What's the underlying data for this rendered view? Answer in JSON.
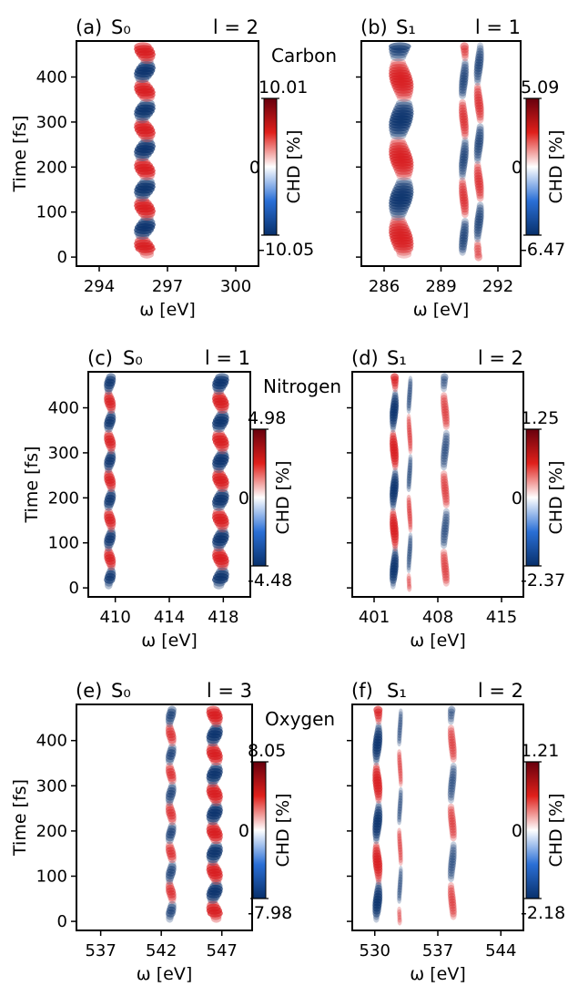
{
  "chart_data": [
    {
      "type": "heatmap",
      "panel": "(a)",
      "state": "S₀",
      "l_label": "l = 2",
      "element": "Carbon",
      "xlabel": "ω [eV]",
      "ylabel": "Time [fs]",
      "xticks": [
        "294",
        "297",
        "300"
      ],
      "yticks": [
        "0",
        "100",
        "200",
        "300",
        "400"
      ],
      "xlim": [
        293.0,
        301.0
      ],
      "ylim": [
        -20,
        480
      ],
      "colorbar": {
        "label": "CHD [%]",
        "max": "10.01",
        "mid": "0",
        "min": "-10.05"
      },
      "features": [
        {
          "x": 296.0,
          "width": 0.9,
          "amp": 1.0,
          "period": 87,
          "phase": 0.0
        }
      ]
    },
    {
      "type": "heatmap",
      "panel": "(b)",
      "state": "S₁",
      "l_label": "l = 1",
      "element": "",
      "xlabel": "ω [eV]",
      "ylabel": "",
      "xticks": [
        "286",
        "289",
        "292"
      ],
      "yticks": [
        "",
        "",
        "",
        "",
        ""
      ],
      "xlim": [
        284.8,
        293.2
      ],
      "ylim": [
        -20,
        480
      ],
      "colorbar": {
        "label": "CHD [%]",
        "max": "5.09",
        "mid": "0",
        "min": "-6.47"
      },
      "features": [
        {
          "x": 286.9,
          "width": 1.3,
          "amp": 0.9,
          "period": 175,
          "phase": 0.0
        },
        {
          "x": 290.2,
          "width": 0.6,
          "amp": 0.55,
          "period": 175,
          "phase": 0.5
        },
        {
          "x": 291.0,
          "width": 0.6,
          "amp": 0.55,
          "period": 175,
          "phase": 0.3
        }
      ]
    },
    {
      "type": "heatmap",
      "panel": "(c)",
      "state": "S₀",
      "l_label": "l = 1",
      "element": "Nitrogen",
      "xlabel": "ω [eV]",
      "ylabel": "Time [fs]",
      "xticks": [
        "410",
        "414",
        "418"
      ],
      "yticks": [
        "0",
        "100",
        "200",
        "300",
        "400"
      ],
      "xlim": [
        408.0,
        420.0
      ],
      "ylim": [
        -20,
        480
      ],
      "colorbar": {
        "label": "CHD [%]",
        "max": "4.98",
        "mid": "0",
        "min": "-4.48"
      },
      "features": [
        {
          "x": 409.6,
          "width": 0.9,
          "amp": 0.85,
          "period": 87,
          "phase": 0.5
        },
        {
          "x": 417.8,
          "width": 1.2,
          "amp": 1.0,
          "period": 87,
          "phase": 0.5
        }
      ]
    },
    {
      "type": "heatmap",
      "panel": "(d)",
      "state": "S₁",
      "l_label": "l = 2",
      "element": "",
      "xlabel": "ω [eV]",
      "ylabel": "",
      "xticks": [
        "401",
        "408",
        "415"
      ],
      "yticks": [
        "",
        "",
        "",
        "",
        ""
      ],
      "xlim": [
        398.6,
        417.4
      ],
      "ylim": [
        -20,
        480
      ],
      "colorbar": {
        "label": "CHD [%]",
        "max": "1.25",
        "mid": "0",
        "min": "-2.37"
      },
      "features": [
        {
          "x": 403.2,
          "width": 1.0,
          "amp": 0.9,
          "period": 175,
          "phase": 0.5
        },
        {
          "x": 404.9,
          "width": 0.8,
          "amp": 0.35,
          "period": 175,
          "phase": 0.3
        },
        {
          "x": 408.8,
          "width": 1.2,
          "amp": 0.4,
          "period": 175,
          "phase": 0.0
        }
      ]
    },
    {
      "type": "heatmap",
      "panel": "(e)",
      "state": "S₀",
      "l_label": "l = 3",
      "element": "Oxygen",
      "xlabel": "ω [eV]",
      "ylabel": "Time [fs]",
      "xticks": [
        "537",
        "542",
        "547"
      ],
      "yticks": [
        "0",
        "100",
        "200",
        "300",
        "400"
      ],
      "xlim": [
        535.0,
        549.5
      ],
      "ylim": [
        -20,
        480
      ],
      "colorbar": {
        "label": "CHD [%]",
        "max": "8.05",
        "mid": "0",
        "min": "-7.98"
      },
      "features": [
        {
          "x": 542.8,
          "width": 1.0,
          "amp": 0.6,
          "period": 87,
          "phase": 0.5
        },
        {
          "x": 546.4,
          "width": 1.3,
          "amp": 1.0,
          "period": 87,
          "phase": 0.0
        }
      ]
    },
    {
      "type": "heatmap",
      "panel": "(f)",
      "state": "S₁",
      "l_label": "l = 2",
      "element": "",
      "xlabel": "ω [eV]",
      "ylabel": "",
      "xticks": [
        "530",
        "537",
        "544"
      ],
      "yticks": [
        "",
        "",
        "",
        "",
        ""
      ],
      "xlim": [
        527.5,
        546.5
      ],
      "ylim": [
        -20,
        480
      ],
      "colorbar": {
        "label": "CHD [%]",
        "max": "1.21",
        "mid": "0",
        "min": "-2.18"
      },
      "features": [
        {
          "x": 530.3,
          "width": 1.1,
          "amp": 0.9,
          "period": 175,
          "phase": 0.5
        },
        {
          "x": 532.8,
          "width": 0.8,
          "amp": 0.3,
          "period": 175,
          "phase": 0.3
        },
        {
          "x": 538.6,
          "width": 1.2,
          "amp": 0.4,
          "period": 175,
          "phase": 0.0
        }
      ]
    }
  ],
  "colors": {
    "positive": "#d7191c",
    "negative": "#08306b",
    "neutral": "#ffffff"
  }
}
